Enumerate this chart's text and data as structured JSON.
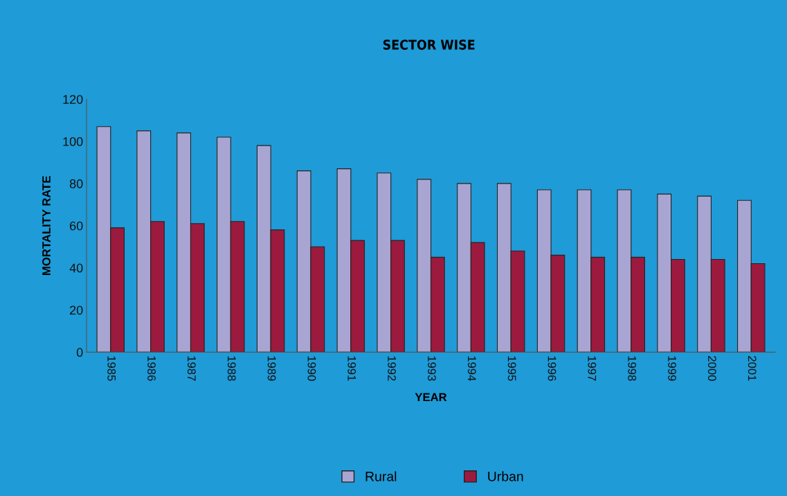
{
  "chart_data": {
    "type": "bar",
    "title": "SECTOR WISE",
    "xlabel": "YEAR",
    "ylabel": "MORTALITY RATE",
    "categories": [
      "1985",
      "1986",
      "1987",
      "1988",
      "1989",
      "1990",
      "1991",
      "1992",
      "1993",
      "1994",
      "1995",
      "1996",
      "1997",
      "1998",
      "1999",
      "2000",
      "2001"
    ],
    "series": [
      {
        "name": "Rural",
        "color": "#a9a5d2",
        "values": [
          107,
          105,
          104,
          102,
          98,
          86,
          87,
          85,
          82,
          80,
          80,
          77,
          77,
          77,
          75,
          74,
          72
        ]
      },
      {
        "name": "Urban",
        "color": "#9c1a3e",
        "values": [
          59,
          62,
          61,
          62,
          58,
          50,
          53,
          53,
          45,
          52,
          48,
          46,
          45,
          45,
          44,
          44,
          42
        ]
      }
    ],
    "ylim": [
      0,
      120
    ],
    "yticks": [
      0,
      20,
      40,
      60,
      80,
      100,
      120
    ],
    "grid": false,
    "legend": "bottom"
  }
}
